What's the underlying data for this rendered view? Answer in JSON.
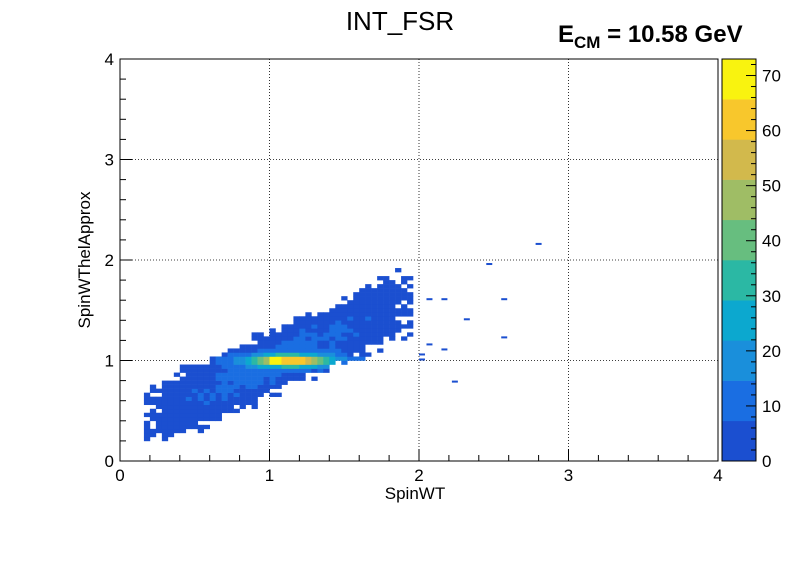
{
  "chart_data": {
    "type": "heatmap",
    "title": "INT_FSR",
    "annotation": {
      "main": "E",
      "subscript": "CM",
      "rest": " = 10.58 GeV"
    },
    "xlabel": "SpinWT",
    "ylabel": "SpinWThelApprox",
    "xlim": [
      0,
      4
    ],
    "ylim": [
      0,
      4
    ],
    "x_ticks": [
      "0",
      "1",
      "2",
      "3",
      "4"
    ],
    "y_ticks": [
      "0",
      "1",
      "2",
      "3",
      "4"
    ],
    "grid": true,
    "colorbar": {
      "range": [
        0,
        73
      ],
      "ticks": [
        "0",
        "10",
        "20",
        "30",
        "40",
        "50",
        "60",
        "70"
      ],
      "palette": [
        "#1b4fd0",
        "#1a6ee2",
        "#1a8fdb",
        "#0ca8cf",
        "#2bb8a4",
        "#67be7f",
        "#9fbd65",
        "#d2b94c",
        "#f8c72c",
        "#f9f30f"
      ]
    },
    "peak": {
      "x": 1.05,
      "y": 1.0,
      "value": 73
    },
    "distribution": {
      "orientation": "band from (0.15, 0.45) to (1.95, 1.7)",
      "axis_slope": 0.68,
      "core_y": 1.0,
      "outliers": [
        [
          2.78,
          2.15
        ],
        [
          2.45,
          1.95
        ],
        [
          2.55,
          1.6
        ],
        [
          2.15,
          1.6
        ],
        [
          2.05,
          1.6
        ],
        [
          2.3,
          1.4
        ],
        [
          2.55,
          1.22
        ],
        [
          2.15,
          1.1
        ],
        [
          2.05,
          1.15
        ],
        [
          2.22,
          0.78
        ],
        [
          2.0,
          1.05
        ],
        [
          2.0,
          1.0
        ]
      ]
    }
  }
}
